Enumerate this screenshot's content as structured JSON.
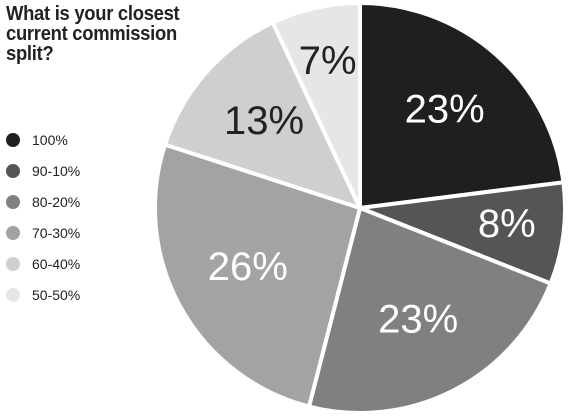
{
  "chart_data": {
    "type": "pie",
    "title": "What is your closest current commission split?",
    "categories": [
      "100%",
      "90-10%",
      "80-20%",
      "70-30%",
      "60-40%",
      "50-50%"
    ],
    "values": [
      23,
      8,
      23,
      26,
      13,
      7
    ],
    "labels": [
      "23%",
      "8%",
      "23%",
      "26%",
      "13%",
      "7%"
    ],
    "colors": [
      "#1f1f1f",
      "#555555",
      "#808080",
      "#a3a3a3",
      "#cfcfcf",
      "#e6e6e6"
    ],
    "label_colors": [
      "#ffffff",
      "#ffffff",
      "#ffffff",
      "#ffffff",
      "#222222",
      "#222222"
    ],
    "legend_position": "left"
  }
}
